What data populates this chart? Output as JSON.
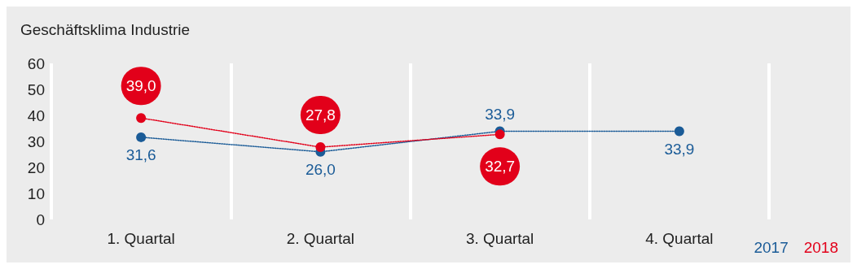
{
  "chart_data": {
    "type": "line",
    "title": "Geschäftsklima Industrie",
    "categories": [
      "1. Quartal",
      "2. Quartal",
      "3. Quartal",
      "4. Quartal"
    ],
    "series": [
      {
        "name": "2017",
        "color": "#1a5b97",
        "values": [
          31.6,
          26.0,
          33.9,
          33.9
        ],
        "value_labels": [
          "31,6",
          "26,0",
          "33,9",
          "33,9"
        ]
      },
      {
        "name": "2018",
        "color": "#e2001a",
        "values": [
          39.0,
          27.8,
          32.7,
          null
        ],
        "value_labels": [
          "39,0",
          "27,8",
          "32,7",
          null
        ]
      }
    ],
    "ylim": [
      0,
      60
    ],
    "yticks": [
      0,
      10,
      20,
      30,
      40,
      50,
      60
    ],
    "grid": "x",
    "legend": "bottom right",
    "marker": "circle",
    "line_style": "dotted"
  }
}
